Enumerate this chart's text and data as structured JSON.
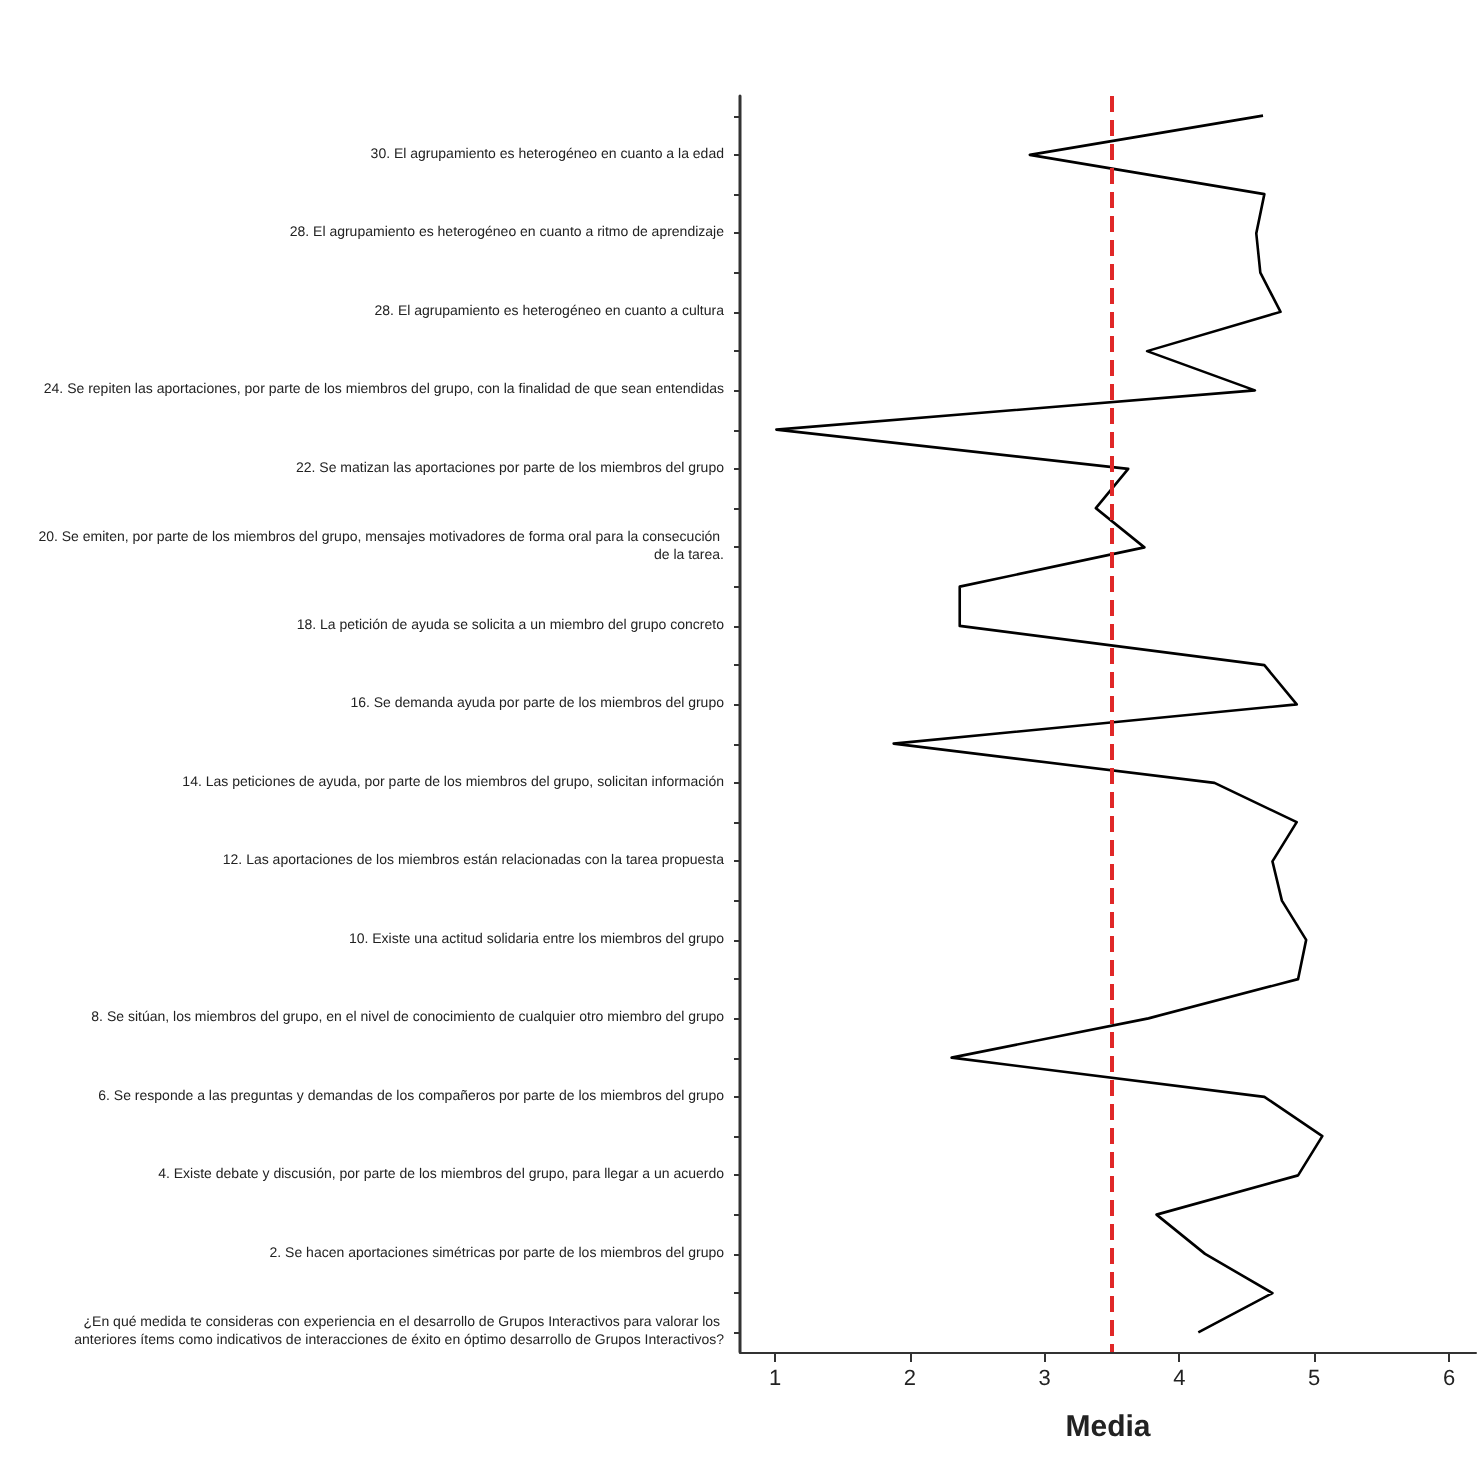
{
  "chart_data": {
    "type": "line",
    "orientation": "horizontal",
    "xlabel": "Media",
    "categories": [
      null,
      "30. El agrupamiento es heterogéneo en cuanto a la edad",
      null,
      "28. El agrupamiento es heterogéneo en cuanto a ritmo de aprendizaje",
      null,
      "28. El agrupamiento es heterogéneo en cuanto a cultura",
      null,
      "24. Se repiten las aportaciones, por parte de los miembros del grupo, con la finalidad de que sean entendidas",
      null,
      "22. Se matizan las aportaciones por parte de los miembros del grupo",
      null,
      "20. Se emiten, por parte de los miembros del grupo, mensajes motivadores de forma oral para la consecución de la tarea.",
      null,
      "18. La petición de ayuda se solicita a un miembro del grupo concreto",
      null,
      "16. Se demanda ayuda por parte de los miembros del grupo",
      null,
      "14. Las peticiones de ayuda, por parte de los miembros del grupo, solicitan información",
      null,
      "12. Las aportaciones de los miembros están relacionadas con la tarea propuesta",
      null,
      "10. Existe una actitud solidaria entre los miembros del grupo",
      null,
      "8. Se sitúan, los miembros del grupo, en el nivel de conocimiento de cualquier otro miembro del grupo",
      null,
      "6. Se responde a las preguntas y demandas de los compañeros por parte de los miembros del grupo",
      null,
      "4. Existe debate y discusión, por parte de los miembros del grupo, para llegar a un acuerdo",
      null,
      "2. Se hacen aportaciones simétricas por parte de los miembros del grupo",
      null,
      "¿En qué medida te consideras con experiencia en el desarrollo de Grupos Interactivos para valorar los anteriores ítems como indicativos de interacciones de éxito en óptimo desarrollo de Grupos Interactivos?"
    ],
    "series": [
      {
        "color": "#000000",
        "values": [
          4.62,
          2.89,
          4.63,
          4.57,
          4.6,
          4.75,
          3.76,
          4.56,
          1.01,
          3.62,
          3.38,
          3.74,
          2.37,
          2.37,
          4.63,
          4.87,
          1.88,
          4.26,
          4.87,
          4.69,
          4.76,
          4.94,
          4.88,
          3.77,
          2.31,
          4.63,
          5.06,
          4.88,
          3.83,
          4.19,
          4.69,
          4.14
        ]
      }
    ],
    "xlim": [
      0.74,
      6.2
    ],
    "xticks": [
      1,
      2,
      3,
      4,
      5,
      6
    ],
    "ref_lines": [
      {
        "axis": "x",
        "value": 3.5,
        "color": "#e02828",
        "line_style": "dashed"
      }
    ],
    "marker": "none",
    "line_style": "solid",
    "grid": false
  }
}
